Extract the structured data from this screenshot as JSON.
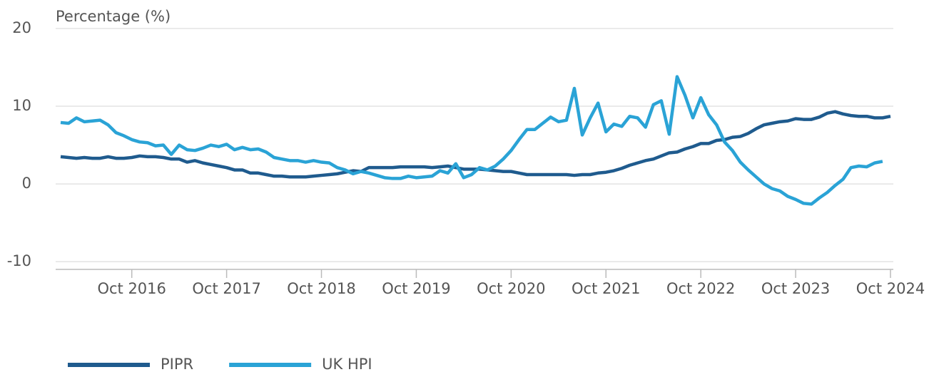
{
  "chart_data": {
    "type": "line",
    "axis_title": "Percentage (%)",
    "categories": [
      null,
      null,
      null,
      null,
      null,
      null,
      null,
      null,
      null,
      "Oct 2016",
      null,
      null,
      null,
      null,
      null,
      null,
      null,
      null,
      null,
      null,
      null,
      "Oct 2017",
      null,
      null,
      null,
      null,
      null,
      null,
      null,
      null,
      null,
      null,
      null,
      "Oct 2018",
      null,
      null,
      null,
      null,
      null,
      null,
      null,
      null,
      null,
      null,
      null,
      "Oct 2019",
      null,
      null,
      null,
      null,
      null,
      null,
      null,
      null,
      null,
      null,
      null,
      "Oct 2020",
      null,
      null,
      null,
      null,
      null,
      null,
      null,
      null,
      null,
      null,
      null,
      "Oct 2021",
      null,
      null,
      null,
      null,
      null,
      null,
      null,
      null,
      null,
      null,
      null,
      "Oct 2022",
      null,
      null,
      null,
      null,
      null,
      null,
      null,
      null,
      null,
      null,
      null,
      "Oct 2023",
      null,
      null,
      null,
      null,
      null,
      null,
      null,
      null,
      null,
      null,
      null,
      "Oct 2024"
    ],
    "series": [
      {
        "name": "PIPR",
        "color": "#1f5b8e",
        "values": [
          3.5,
          3.4,
          3.3,
          3.4,
          3.3,
          3.3,
          3.5,
          3.3,
          3.3,
          3.4,
          3.6,
          3.5,
          3.5,
          3.4,
          3.2,
          3.2,
          2.8,
          3.0,
          2.7,
          2.5,
          2.3,
          2.1,
          1.8,
          1.8,
          1.4,
          1.4,
          1.2,
          1.0,
          1.0,
          0.9,
          0.9,
          0.9,
          1.0,
          1.1,
          1.2,
          1.3,
          1.5,
          1.7,
          1.6,
          2.1,
          2.1,
          2.1,
          2.1,
          2.2,
          2.2,
          2.2,
          2.2,
          2.1,
          2.2,
          2.3,
          2.1,
          1.9,
          1.9,
          1.9,
          1.8,
          1.7,
          1.6,
          1.6,
          1.4,
          1.2,
          1.2,
          1.2,
          1.2,
          1.2,
          1.2,
          1.1,
          1.2,
          1.2,
          1.4,
          1.5,
          1.7,
          2.0,
          2.4,
          2.7,
          3.0,
          3.2,
          3.6,
          4.0,
          4.1,
          4.5,
          4.8,
          5.2,
          5.2,
          5.6,
          5.7,
          6.0,
          6.1,
          6.5,
          7.1,
          7.6,
          7.8,
          8.0,
          8.1,
          8.4,
          8.3,
          8.3,
          8.6,
          9.1,
          9.3,
          9.0,
          8.8,
          8.7,
          8.7,
          8.5,
          8.5,
          8.7
        ]
      },
      {
        "name": "UK HPI",
        "color": "#2aa3d6",
        "values": [
          7.9,
          7.8,
          8.5,
          8.0,
          8.1,
          8.2,
          7.6,
          6.6,
          6.2,
          5.7,
          5.4,
          5.3,
          4.9,
          5.0,
          3.8,
          5.0,
          4.4,
          4.3,
          4.6,
          5.0,
          4.8,
          5.1,
          4.4,
          4.7,
          4.4,
          4.5,
          4.1,
          3.4,
          3.2,
          3.0,
          3.0,
          2.8,
          3.0,
          2.8,
          2.7,
          2.1,
          1.8,
          1.3,
          1.6,
          1.4,
          1.1,
          0.8,
          0.7,
          0.7,
          1.0,
          0.8,
          0.9,
          1.0,
          1.7,
          1.4,
          2.6,
          0.8,
          1.2,
          2.1,
          1.8,
          2.3,
          3.2,
          4.3,
          5.7,
          7.0,
          7.0,
          7.8,
          8.6,
          8.0,
          8.2,
          12.3,
          6.3,
          8.5,
          10.4,
          6.7,
          7.7,
          7.4,
          8.7,
          8.5,
          7.3,
          10.2,
          10.7,
          6.4,
          13.8,
          11.4,
          8.5,
          11.1,
          8.9,
          7.6,
          5.4,
          4.3,
          2.8,
          1.8,
          0.9,
          0.0,
          -0.6,
          -0.9,
          -1.6,
          -2.0,
          -2.5,
          -2.6,
          -1.8,
          -1.1,
          -0.2,
          0.6,
          2.1,
          2.3,
          2.2,
          2.7,
          2.9,
          null
        ]
      }
    ],
    "ylim": [
      -11,
      20
    ],
    "yticks": [
      -10,
      0,
      10,
      20
    ],
    "grid": true,
    "legend": "bottom"
  }
}
